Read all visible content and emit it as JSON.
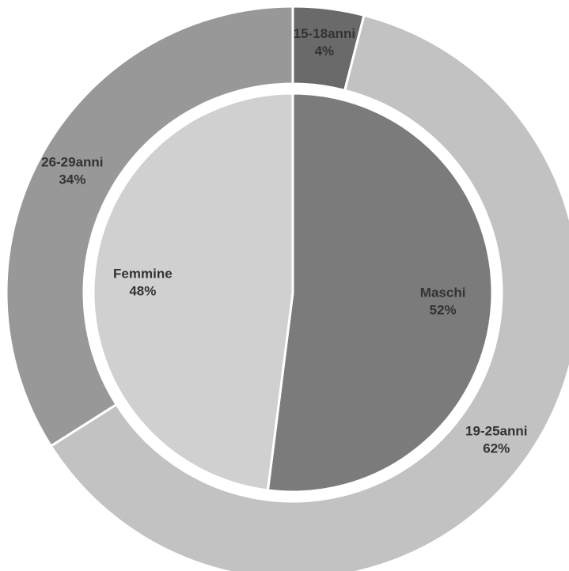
{
  "chart_data": [
    {
      "type": "pie",
      "categories": [
        "Maschi",
        "Femmine"
      ],
      "values": [
        52,
        48
      ],
      "value_labels": [
        "52%",
        "48%"
      ],
      "colors": [
        "#7b7b7b",
        "#d0d0d0"
      ]
    },
    {
      "type": "donut",
      "categories": [
        "15-18anni",
        "19-25anni",
        "26-29anni"
      ],
      "values": [
        4,
        62,
        34
      ],
      "value_labels": [
        "4%",
        "62%",
        "34%"
      ],
      "colors": [
        "#6a6a6a",
        "#c2c2c2",
        "#989898"
      ]
    }
  ]
}
